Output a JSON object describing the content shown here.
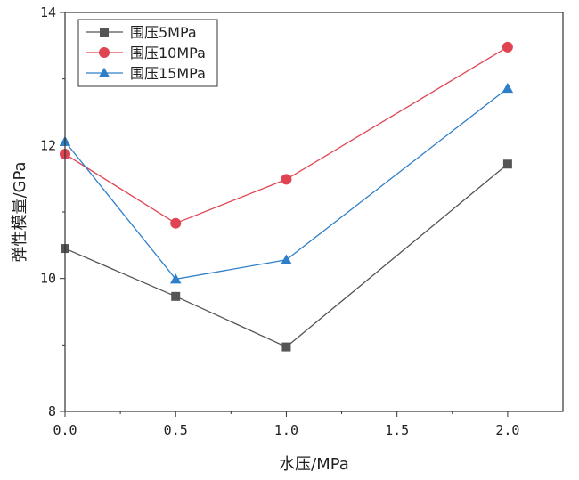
{
  "chart_data": {
    "type": "line",
    "title": "",
    "xlabel": "水压/MPa",
    "ylabel": "弹性模量/GPa",
    "xlim": [
      0,
      2.25
    ],
    "ylim": [
      8,
      14
    ],
    "xticks": [
      0,
      0.5,
      1,
      1.5,
      2
    ],
    "xtick_labels": [
      "0.0",
      "0.5",
      "1.0",
      "1.5",
      "2.0"
    ],
    "yticks": [
      8,
      10,
      12,
      14
    ],
    "ytick_labels": [
      "8",
      "10",
      "12",
      "14"
    ],
    "grid": false,
    "legend_position": "top-left",
    "x": [
      0,
      0.5,
      1,
      2
    ],
    "series": [
      {
        "name": "围压5MPa",
        "values": [
          10.45,
          9.73,
          8.97,
          11.72
        ],
        "color": "#555555",
        "marker": "square"
      },
      {
        "name": "围压10MPa",
        "values": [
          11.87,
          10.83,
          11.49,
          13.48
        ],
        "color": "#e04452",
        "marker": "circle"
      },
      {
        "name": "围压15MPa",
        "values": [
          12.06,
          9.99,
          10.28,
          12.86
        ],
        "color": "#2f7fc8",
        "marker": "triangle"
      }
    ]
  }
}
